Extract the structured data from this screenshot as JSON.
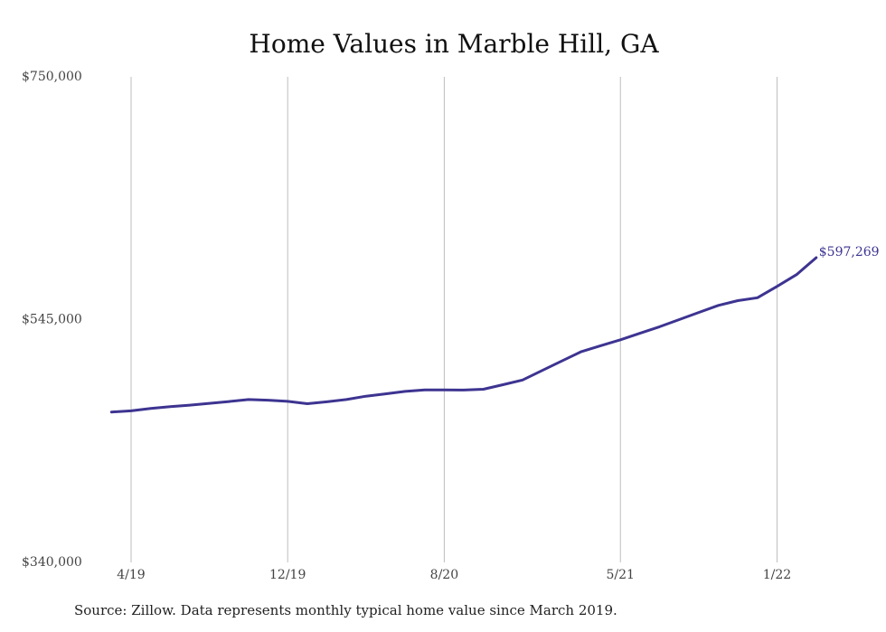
{
  "title": "Home Values in Marble Hill, GA",
  "source": "Source: Zillow. Data represents monthly typical home value since March 2019.",
  "chart_data": {
    "type": "line",
    "title": "Home Values in Marble Hill, GA",
    "xlabel": "",
    "ylabel": "",
    "ylim": [
      340000,
      750000
    ],
    "y_ticks": [
      {
        "value": 750000,
        "label": "$750,000"
      },
      {
        "value": 545000,
        "label": "$545,000"
      },
      {
        "value": 340000,
        "label": "$340,000"
      }
    ],
    "x_ticks": [
      {
        "date": "2019-04",
        "label": "4/19"
      },
      {
        "date": "2019-12",
        "label": "12/19"
      },
      {
        "date": "2020-08",
        "label": "8/20"
      },
      {
        "date": "2021-05",
        "label": "5/21"
      },
      {
        "date": "2022-01",
        "label": "1/22"
      }
    ],
    "grid": "vertical",
    "line_color": "#3d3491",
    "end_label": "$597,269",
    "series": [
      {
        "name": "",
        "points": [
          {
            "x": "2019-03",
            "y": 467000
          },
          {
            "x": "2019-04",
            "y": 468000
          },
          {
            "x": "2019-05",
            "y": 470000
          },
          {
            "x": "2019-06",
            "y": 471500
          },
          {
            "x": "2019-07",
            "y": 472800
          },
          {
            "x": "2019-08",
            "y": 474300
          },
          {
            "x": "2019-09",
            "y": 475800
          },
          {
            "x": "2019-10",
            "y": 477500
          },
          {
            "x": "2019-11",
            "y": 477000
          },
          {
            "x": "2019-12",
            "y": 476000
          },
          {
            "x": "2020-01",
            "y": 474000
          },
          {
            "x": "2020-02",
            "y": 475600
          },
          {
            "x": "2020-03",
            "y": 477500
          },
          {
            "x": "2020-04",
            "y": 480300
          },
          {
            "x": "2020-05",
            "y": 482300
          },
          {
            "x": "2020-06",
            "y": 484400
          },
          {
            "x": "2020-07",
            "y": 485700
          },
          {
            "x": "2020-08",
            "y": 485700
          },
          {
            "x": "2020-09",
            "y": 485500
          },
          {
            "x": "2020-10",
            "y": 486200
          },
          {
            "x": "2020-11",
            "y": 490000
          },
          {
            "x": "2020-12",
            "y": 494000
          },
          {
            "x": "2021-01",
            "y": 502000
          },
          {
            "x": "2021-02",
            "y": 510000
          },
          {
            "x": "2021-03",
            "y": 518000
          },
          {
            "x": "2021-04",
            "y": 523000
          },
          {
            "x": "2021-05",
            "y": 528000
          },
          {
            "x": "2021-06",
            "y": 533500
          },
          {
            "x": "2021-07",
            "y": 539000
          },
          {
            "x": "2021-08",
            "y": 545000
          },
          {
            "x": "2021-09",
            "y": 551000
          },
          {
            "x": "2021-10",
            "y": 557000
          },
          {
            "x": "2021-11",
            "y": 561000
          },
          {
            "x": "2021-12",
            "y": 563500
          },
          {
            "x": "2022-01",
            "y": 573000
          },
          {
            "x": "2022-02",
            "y": 583000
          },
          {
            "x": "2022-03",
            "y": 597269
          }
        ]
      }
    ]
  }
}
